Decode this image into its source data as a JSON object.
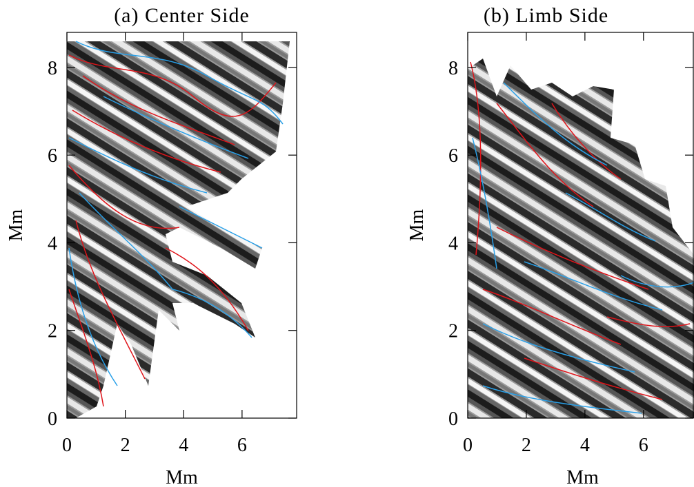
{
  "chart_data": [
    {
      "type": "image",
      "title": "(a) Center Side",
      "xlabel": "Mm",
      "ylabel": "Mm",
      "xlim": [
        0,
        7.87
      ],
      "ylim": [
        0,
        8.8
      ],
      "xticks": [
        0,
        2,
        4,
        6
      ],
      "yticks": [
        0,
        2,
        4,
        6,
        8
      ]
    },
    {
      "type": "image",
      "title": "(b) Limb Side",
      "xlabel": "Mm",
      "ylabel": "Mm",
      "xlim": [
        0,
        7.7
      ],
      "ylim": [
        0,
        8.8
      ],
      "xticks": [
        0,
        2,
        4,
        6
      ],
      "yticks": [
        0,
        2,
        4,
        6,
        8
      ]
    }
  ]
}
